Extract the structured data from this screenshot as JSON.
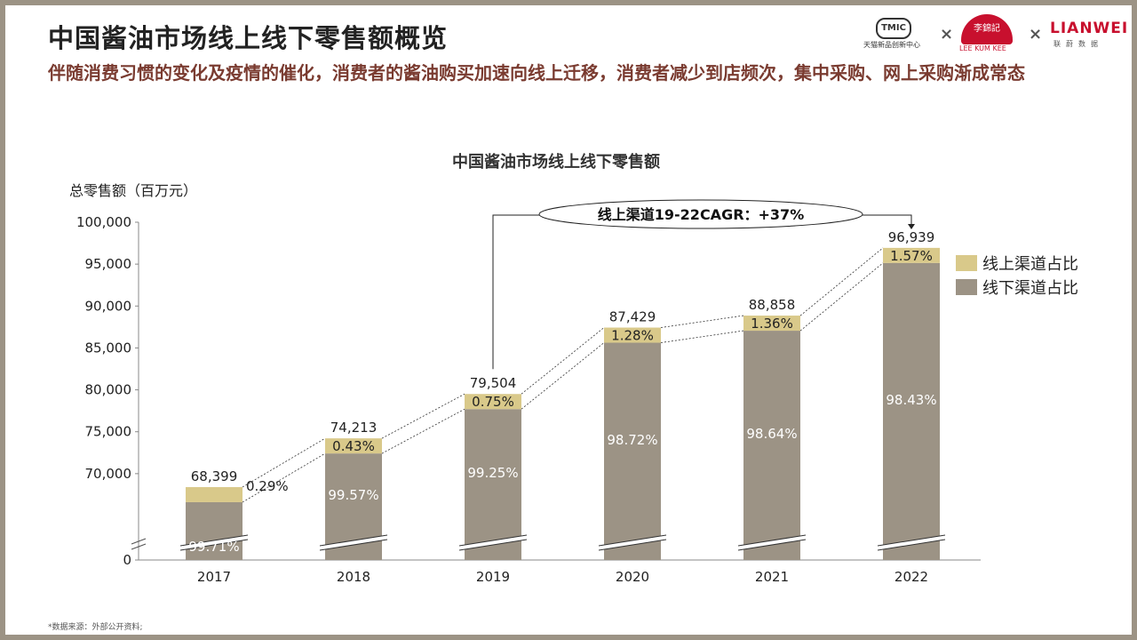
{
  "header": {
    "title": "中国酱油市场线上线下零售额概览",
    "subtitle": "伴随消费习惯的变化及疫情的催化，消费者的酱油购买加速向线上迁移，消费者减少到店频次，集中采购、网上采购渐成常态"
  },
  "logos": {
    "tmic": "TMIC",
    "tmic_sub": "天猫新品创新中心",
    "separator": "×",
    "lkk_cn": "李錦記",
    "lkk_en": "LEE KUM KEE",
    "lianwei": "LIANWEI",
    "lianwei_sub": "联蔚数据"
  },
  "chart_data": {
    "type": "bar",
    "stacked": true,
    "title": "中国酱油市场线上线下零售额",
    "ylabel": "总零售额（百万元）",
    "ylim": [
      65000,
      100000
    ],
    "axis_break": true,
    "y_ticks": [
      "0",
      "70,000",
      "75,000",
      "80,000",
      "85,000",
      "90,000",
      "95,000",
      "100,000"
    ],
    "categories": [
      "2017",
      "2018",
      "2019",
      "2020",
      "2021",
      "2022"
    ],
    "totals": [
      68399,
      74213,
      79504,
      87429,
      88858,
      96939
    ],
    "total_labels": [
      "68,399",
      "74,213",
      "79,504",
      "87,429",
      "88,858",
      "96,939"
    ],
    "series": [
      {
        "name": "线下渠道占比",
        "color": "#9c9385",
        "share_labels": [
          "99.71%",
          "99.57%",
          "99.25%",
          "98.72%",
          "98.64%",
          "98.43%"
        ]
      },
      {
        "name": "线上渠道占比",
        "color": "#d9c98a",
        "share_labels": [
          "0.29%",
          "0.43%",
          "0.75%",
          "1.28%",
          "1.36%",
          "1.57%"
        ]
      }
    ],
    "legend_position": "right",
    "annotation": "线上渠道19-22CAGR：+37%"
  },
  "footer": {
    "source": "*数据来源：外部公开资料;"
  }
}
